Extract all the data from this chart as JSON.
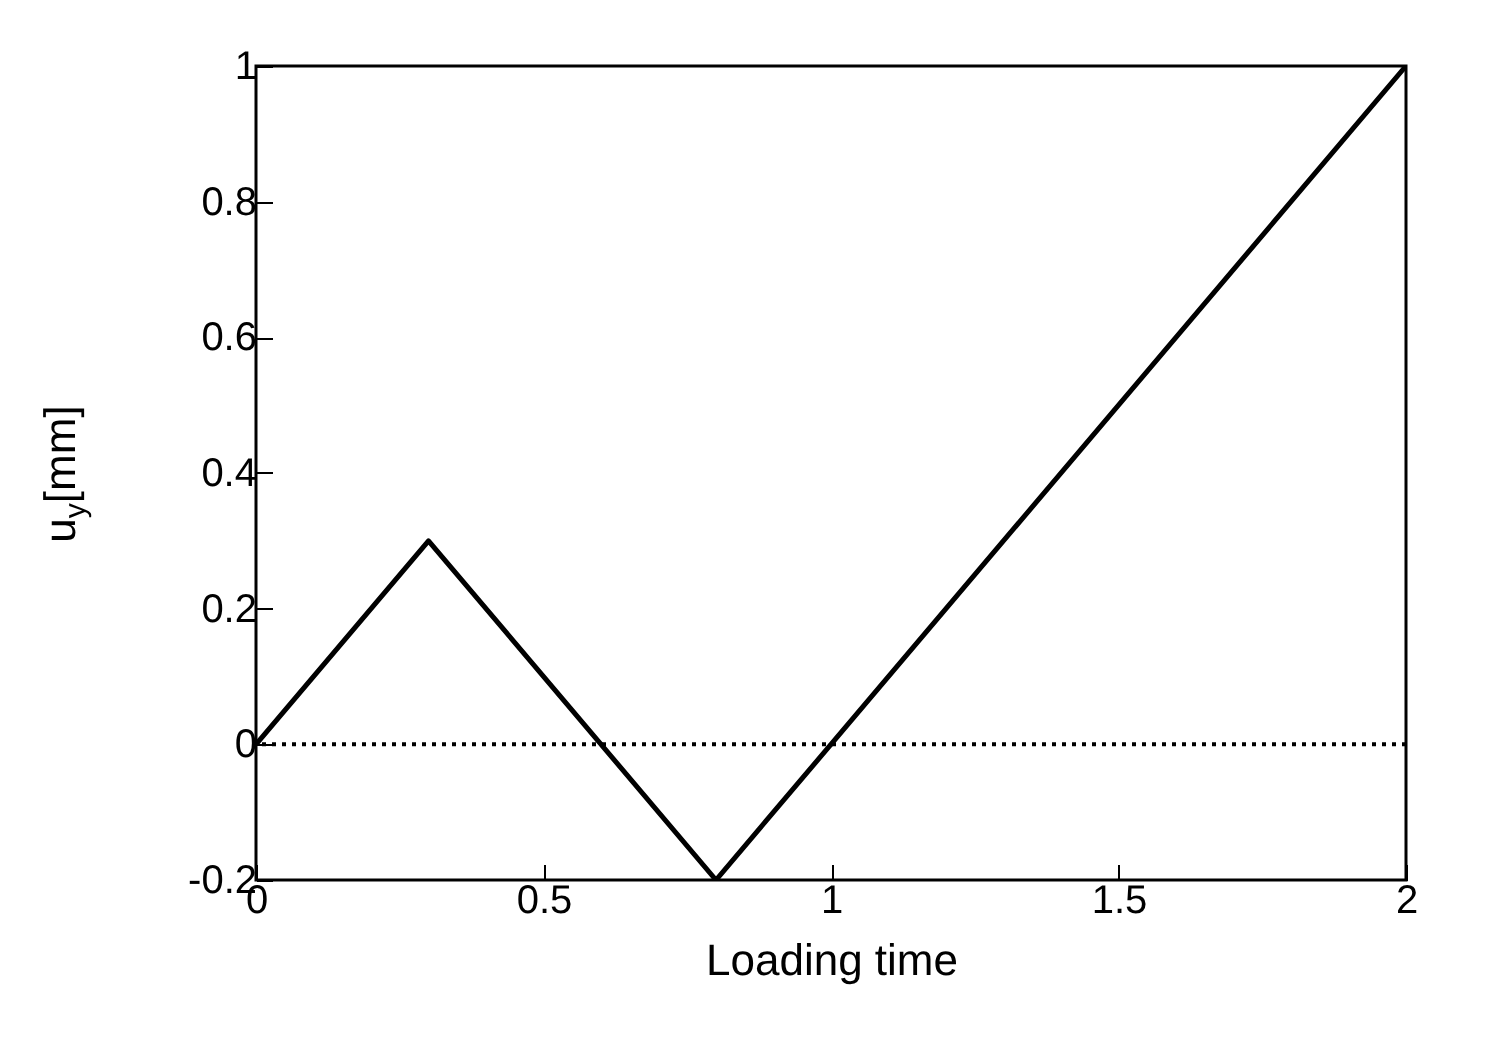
{
  "chart_data": {
    "type": "line",
    "xlabel": "Loading time",
    "ylabel": "u$_{y}$[mm]",
    "x": [
      0,
      0.3,
      0.8,
      2
    ],
    "series": [
      {
        "color": "#000000",
        "values": [
          0,
          0.3,
          -0.2,
          1
        ]
      }
    ],
    "xlim": [
      0,
      2
    ],
    "xticks": [
      0,
      0.5,
      1,
      1.5,
      2
    ],
    "ylim": [
      -0.2,
      1
    ],
    "yticks": [
      -0.2,
      0,
      0.2,
      0.4,
      0.6,
      0.8,
      1
    ],
    "ref_lines": [
      {
        "axis": "y",
        "value": 0,
        "color": "#000000",
        "line_style": "dotted"
      }
    ],
    "line_style": "solid",
    "grid": false
  }
}
